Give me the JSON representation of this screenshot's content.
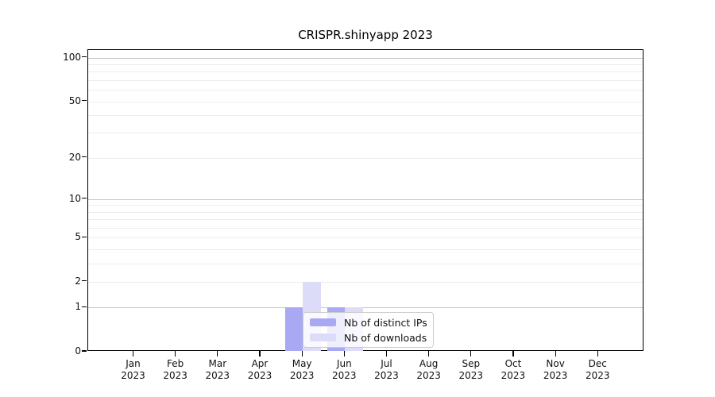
{
  "chart_data": {
    "type": "bar",
    "title": "CRISPR.shinyapp 2023",
    "categories": [
      "Jan",
      "Feb",
      "Mar",
      "Apr",
      "May",
      "Jun",
      "Jul",
      "Aug",
      "Sep",
      "Oct",
      "Nov",
      "Dec"
    ],
    "year_label": "2023",
    "series": [
      {
        "name": "Nb of distinct IPs",
        "color": "#a9a9f3",
        "values": [
          0,
          0,
          0,
          0,
          1,
          1,
          0,
          0,
          0,
          0,
          0,
          0
        ]
      },
      {
        "name": "Nb of downloads",
        "color": "#dcdcf8",
        "values": [
          0,
          0,
          0,
          0,
          2,
          1,
          0,
          0,
          0,
          0,
          0,
          0
        ]
      }
    ],
    "xlabel": "",
    "ylabel": "",
    "yscale": "log1p",
    "ylim": [
      0,
      113
    ],
    "ytick_values": [
      100,
      50,
      20,
      10,
      5,
      2,
      1,
      0
    ],
    "ytick_labels": [
      "100",
      "50",
      "20",
      "10",
      "5",
      "2",
      "1",
      "0"
    ],
    "grid": "on",
    "grid_minor_values": [
      2,
      3,
      4,
      5,
      6,
      7,
      8,
      9,
      20,
      30,
      40,
      50,
      60,
      70,
      80,
      90
    ],
    "grid_major_values": [
      1,
      10,
      100
    ],
    "legend_position": "inside lower-center",
    "colors": {
      "grid_minor": "#ededed",
      "grid_major": "#c6c6c6",
      "axis": "#000000",
      "legend_border": "#cccccc",
      "background": "#ffffff"
    }
  }
}
